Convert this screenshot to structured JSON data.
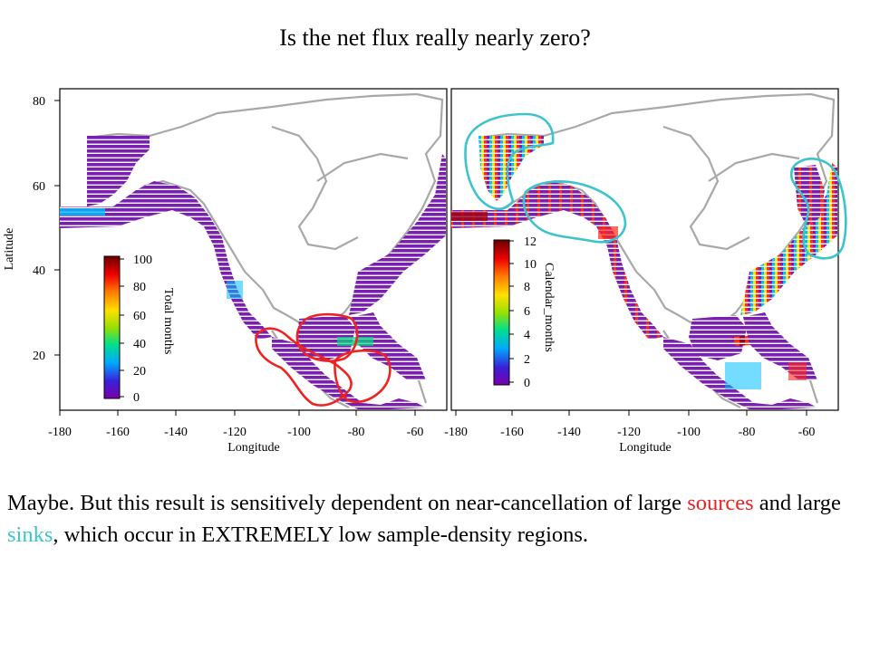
{
  "title": "Is the net flux really nearly zero?",
  "maps": [
    {
      "x_ticks": [
        "-180",
        "-160",
        "-140",
        "-120",
        "-100",
        "-80",
        "-60"
      ],
      "y_ticks": [
        "80",
        "60",
        "40",
        "20"
      ],
      "xlabel": "Longitude",
      "ylabel": "Latitude",
      "colorbar": {
        "label": "Total months",
        "ticks": [
          "100",
          "80",
          "60",
          "40",
          "20",
          "0"
        ],
        "range": [
          0,
          100
        ]
      }
    },
    {
      "x_ticks": [
        "-180",
        "-160",
        "-140",
        "-120",
        "-100",
        "-80",
        "-60"
      ],
      "xlabel": "Longitude",
      "colorbar": {
        "label": "Calendar_months",
        "ticks": [
          "12",
          "10",
          "8",
          "6",
          "4",
          "2",
          "0"
        ],
        "range": [
          0,
          12
        ]
      }
    }
  ],
  "annotations": {
    "sources_color": "#ee2222",
    "sinks_color": "#3cc4cc",
    "sources_outline_icon": "red-freehand-loop",
    "sinks_outline_icon": "cyan-freehand-loop"
  },
  "body": {
    "part1": "Maybe.  But this result is sensitively dependent on near-cancellation of large ",
    "sources": "sources",
    "part2": " and large ",
    "sinks": "sinks",
    "part3": ", which occur in EXTREMELY low sample-density regions."
  }
}
